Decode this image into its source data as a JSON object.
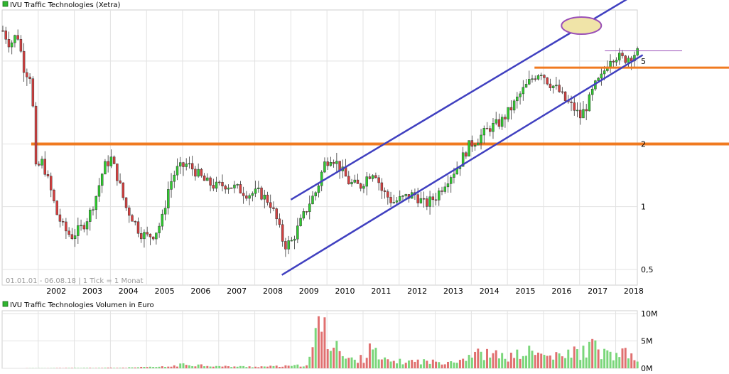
{
  "chart_data": [
    {
      "type": "candlestick",
      "title": "IVU Traffic Technologies (Xetra)",
      "legend_color": "#2fb52f",
      "info_text": "01.01.01 - 06.08.18 | 1 Tick = 1 Monat",
      "scale": "log",
      "ylim": [
        0.42,
        8.8
      ],
      "y_ticks": [
        {
          "value": 5,
          "label": "5"
        },
        {
          "value": 2,
          "label": "2"
        },
        {
          "value": 1,
          "label": "1"
        },
        {
          "value": 0.5,
          "label": "0,5"
        }
      ],
      "x_range": [
        2001.0,
        2018.6
      ],
      "x_ticks": [
        "2002",
        "2003",
        "2004",
        "2005",
        "2006",
        "2007",
        "2008",
        "2009",
        "2010",
        "2011",
        "2012",
        "2013",
        "2014",
        "2015",
        "2016",
        "2017",
        "2018"
      ],
      "grid": true,
      "colors": {
        "up": "#2fcc2f",
        "down": "#d64040",
        "wick": "#333333"
      },
      "price_path": [
        {
          "x": 2001.0,
          "v": 7.0
        },
        {
          "x": 2001.2,
          "v": 6.0
        },
        {
          "x": 2001.4,
          "v": 6.8
        },
        {
          "x": 2001.6,
          "v": 4.5
        },
        {
          "x": 2001.8,
          "v": 4.2
        },
        {
          "x": 2001.9,
          "v": 1.5
        },
        {
          "x": 2002.1,
          "v": 1.65
        },
        {
          "x": 2002.3,
          "v": 1.25
        },
        {
          "x": 2002.5,
          "v": 0.92
        },
        {
          "x": 2002.7,
          "v": 0.78
        },
        {
          "x": 2002.9,
          "v": 0.72
        },
        {
          "x": 2003.2,
          "v": 0.8
        },
        {
          "x": 2003.4,
          "v": 0.92
        },
        {
          "x": 2003.6,
          "v": 1.15
        },
        {
          "x": 2003.8,
          "v": 1.55
        },
        {
          "x": 2004.0,
          "v": 1.7
        },
        {
          "x": 2004.2,
          "v": 1.35
        },
        {
          "x": 2004.4,
          "v": 1.0
        },
        {
          "x": 2004.6,
          "v": 0.88
        },
        {
          "x": 2004.8,
          "v": 0.75
        },
        {
          "x": 2005.0,
          "v": 0.72
        },
        {
          "x": 2005.2,
          "v": 0.74
        },
        {
          "x": 2005.4,
          "v": 0.85
        },
        {
          "x": 2005.6,
          "v": 1.25
        },
        {
          "x": 2005.8,
          "v": 1.5
        },
        {
          "x": 2006.1,
          "v": 1.6
        },
        {
          "x": 2006.3,
          "v": 1.5
        },
        {
          "x": 2006.6,
          "v": 1.32
        },
        {
          "x": 2006.9,
          "v": 1.25
        },
        {
          "x": 2007.2,
          "v": 1.28
        },
        {
          "x": 2007.5,
          "v": 1.22
        },
        {
          "x": 2007.8,
          "v": 1.15
        },
        {
          "x": 2008.1,
          "v": 1.17
        },
        {
          "x": 2008.4,
          "v": 1.05
        },
        {
          "x": 2008.6,
          "v": 0.85
        },
        {
          "x": 2008.8,
          "v": 0.65
        },
        {
          "x": 2009.0,
          "v": 0.68
        },
        {
          "x": 2009.3,
          "v": 0.88
        },
        {
          "x": 2009.5,
          "v": 1.05
        },
        {
          "x": 2009.7,
          "v": 1.2
        },
        {
          "x": 2009.9,
          "v": 1.6
        },
        {
          "x": 2010.1,
          "v": 1.75
        },
        {
          "x": 2010.3,
          "v": 1.58
        },
        {
          "x": 2010.6,
          "v": 1.3
        },
        {
          "x": 2010.9,
          "v": 1.25
        },
        {
          "x": 2011.1,
          "v": 1.4
        },
        {
          "x": 2011.3,
          "v": 1.5
        },
        {
          "x": 2011.5,
          "v": 1.2
        },
        {
          "x": 2011.8,
          "v": 1.05
        },
        {
          "x": 2012.1,
          "v": 1.1
        },
        {
          "x": 2012.4,
          "v": 1.15
        },
        {
          "x": 2012.7,
          "v": 1.02
        },
        {
          "x": 2013.0,
          "v": 1.12
        },
        {
          "x": 2013.3,
          "v": 1.35
        },
        {
          "x": 2013.6,
          "v": 1.55
        },
        {
          "x": 2013.9,
          "v": 1.95
        },
        {
          "x": 2014.2,
          "v": 2.15
        },
        {
          "x": 2014.5,
          "v": 2.4
        },
        {
          "x": 2014.8,
          "v": 2.55
        },
        {
          "x": 2015.1,
          "v": 3.0
        },
        {
          "x": 2015.4,
          "v": 3.6
        },
        {
          "x": 2015.7,
          "v": 4.2
        },
        {
          "x": 2015.9,
          "v": 4.5
        },
        {
          "x": 2016.1,
          "v": 4.0
        },
        {
          "x": 2016.4,
          "v": 3.6
        },
        {
          "x": 2016.6,
          "v": 3.2
        },
        {
          "x": 2016.8,
          "v": 3.0
        },
        {
          "x": 2017.0,
          "v": 2.7
        },
        {
          "x": 2017.2,
          "v": 3.1
        },
        {
          "x": 2017.4,
          "v": 3.8
        },
        {
          "x": 2017.6,
          "v": 4.2
        },
        {
          "x": 2017.8,
          "v": 5.2
        },
        {
          "x": 2018.0,
          "v": 5.3
        },
        {
          "x": 2018.2,
          "v": 5.1
        },
        {
          "x": 2018.4,
          "v": 5.3
        },
        {
          "x": 2018.55,
          "v": 5.5
        }
      ],
      "annotations": {
        "support_line_orange_1": {
          "value": 2.0,
          "color": "#f07a20"
        },
        "support_line_orange_2": {
          "value": 4.65,
          "color": "#f07a20"
        },
        "resistance_line_purple": {
          "value": 5.6,
          "color": "#9a4fb8",
          "x_start": 2017.7
        },
        "channel_upper": {
          "x1": 2009.0,
          "v1": 1.08,
          "x2": 2018.75,
          "v2": 11.0,
          "color": "#4040c0"
        },
        "channel_lower": {
          "x1": 2008.75,
          "v1": 0.47,
          "x2": 2018.75,
          "v2": 5.35,
          "color": "#4040c0"
        },
        "ellipse_marker": {
          "x": 2017.05,
          "v": 7.4,
          "fill": "#f0e4a8",
          "stroke": "#9a4fb8"
        }
      }
    },
    {
      "type": "bar",
      "title": "IVU Traffic Technologies Volumen in Euro",
      "legend_color": "#2fb52f",
      "unit": "Euro",
      "ylim": [
        0,
        10
      ],
      "y_ticks": [
        {
          "value": 10,
          "label": "10M"
        },
        {
          "value": 5,
          "label": "5M"
        },
        {
          "value": 0,
          "label": "0M"
        }
      ],
      "colors": {
        "up": "#7ad67a",
        "down": "#e07070"
      },
      "volume_path": [
        {
          "x": 2001.0,
          "v": 0.0
        },
        {
          "x": 2004.3,
          "v": 0.1
        },
        {
          "x": 2005.6,
          "v": 0.3
        },
        {
          "x": 2006.0,
          "v": 0.7
        },
        {
          "x": 2006.5,
          "v": 0.6
        },
        {
          "x": 2007.0,
          "v": 0.35
        },
        {
          "x": 2008.0,
          "v": 0.3
        },
        {
          "x": 2009.0,
          "v": 0.4
        },
        {
          "x": 2009.4,
          "v": 0.6
        },
        {
          "x": 2009.55,
          "v": 2.0
        },
        {
          "x": 2009.75,
          "v": 9.0
        },
        {
          "x": 2009.9,
          "v": 7.2
        },
        {
          "x": 2010.0,
          "v": 4.2
        },
        {
          "x": 2010.2,
          "v": 6.0
        },
        {
          "x": 2010.4,
          "v": 2.0
        },
        {
          "x": 2010.7,
          "v": 1.5
        },
        {
          "x": 2011.0,
          "v": 1.8
        },
        {
          "x": 2011.2,
          "v": 5.3
        },
        {
          "x": 2011.4,
          "v": 1.5
        },
        {
          "x": 2012.0,
          "v": 1.2
        },
        {
          "x": 2012.6,
          "v": 1.3
        },
        {
          "x": 2013.0,
          "v": 1.1
        },
        {
          "x": 2013.7,
          "v": 1.6
        },
        {
          "x": 2014.0,
          "v": 2.7
        },
        {
          "x": 2014.5,
          "v": 2.5
        },
        {
          "x": 2015.0,
          "v": 2.0
        },
        {
          "x": 2015.6,
          "v": 3.0
        },
        {
          "x": 2016.0,
          "v": 2.3
        },
        {
          "x": 2016.5,
          "v": 2.0
        },
        {
          "x": 2016.8,
          "v": 3.2
        },
        {
          "x": 2017.0,
          "v": 2.6
        },
        {
          "x": 2017.3,
          "v": 4.2
        },
        {
          "x": 2017.6,
          "v": 2.8
        },
        {
          "x": 2018.0,
          "v": 2.2
        },
        {
          "x": 2018.3,
          "v": 2.8
        },
        {
          "x": 2018.55,
          "v": 1.2
        }
      ]
    }
  ]
}
